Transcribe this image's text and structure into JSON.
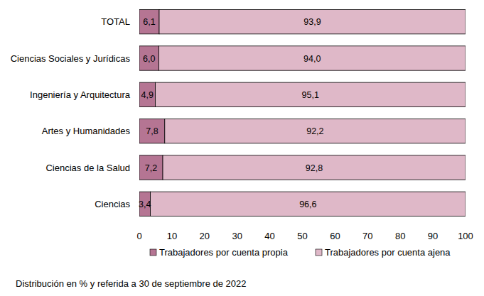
{
  "chart_data": {
    "type": "bar",
    "orientation": "horizontal",
    "stacked": true,
    "data_labels": true,
    "grid": false,
    "legend": "bottom",
    "subtitle": "Distribución en % y referida a 30 de septiembre de 2022",
    "categories": [
      "TOTAL",
      "Ciencias Sociales y Jurídicas",
      "Ingeniería y Arquitectura",
      "Artes y Humanidades",
      "Ciencias de la Salud",
      "Ciencias"
    ],
    "series": [
      {
        "name": "Trabajadores por cuenta propia",
        "color": "#b57593",
        "values": [
          6.1,
          6.0,
          4.9,
          7.8,
          7.2,
          3.4
        ],
        "value_labels": [
          "6,1",
          "6,0",
          "4,9",
          "7,8",
          "7,2",
          "3,4"
        ]
      },
      {
        "name": "Trabajadores por cuenta ajena",
        "color": "#dfb8c8",
        "values": [
          93.9,
          94.0,
          95.1,
          92.2,
          92.8,
          96.6
        ],
        "value_labels": [
          "93,9",
          "94,0",
          "95,1",
          "92,2",
          "92,8",
          "96,6"
        ]
      }
    ],
    "xlim": [
      0,
      100
    ],
    "xticks": [
      0,
      10,
      20,
      30,
      40,
      50,
      60,
      70,
      80,
      90,
      100
    ]
  }
}
